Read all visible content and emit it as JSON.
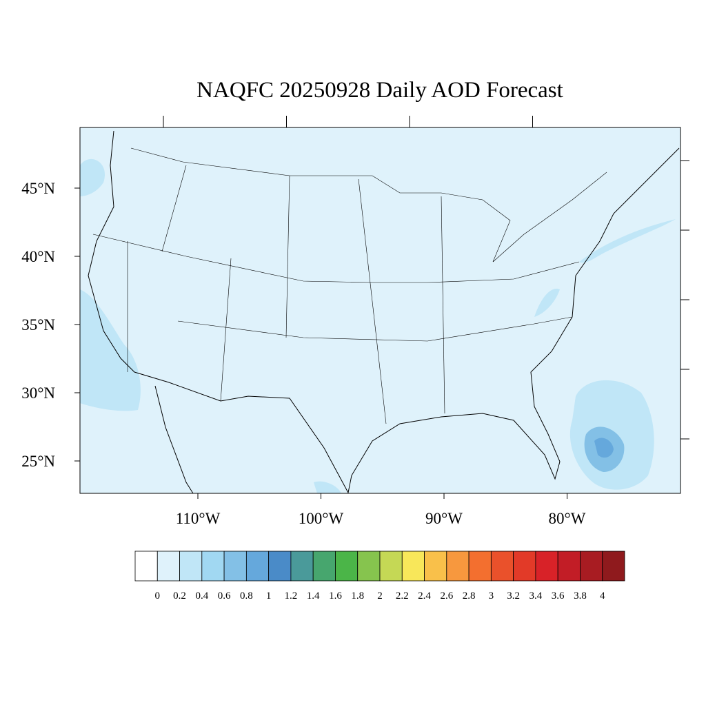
{
  "title": "NAQFC 20250928 Daily AOD Forecast",
  "map": {
    "lat_ticks": [
      {
        "value": 45,
        "label": "45°N"
      },
      {
        "value": 40,
        "label": "40°N"
      },
      {
        "value": 35,
        "label": "35°N"
      },
      {
        "value": 30,
        "label": "30°N"
      },
      {
        "value": 25,
        "label": "25°N"
      }
    ],
    "lon_ticks": [
      {
        "value": -110,
        "label": "110°W"
      },
      {
        "value": -100,
        "label": "100°W"
      },
      {
        "value": -90,
        "label": "90°W"
      },
      {
        "value": -80,
        "label": "80°W"
      }
    ]
  },
  "colorbar": {
    "levels": [
      0,
      0.2,
      0.4,
      0.6,
      0.8,
      1,
      1.2,
      1.4,
      1.6,
      1.8,
      2,
      2.2,
      2.4,
      2.6,
      2.8,
      3,
      3.2,
      3.4,
      3.6,
      3.8,
      4
    ],
    "colors": [
      "#ffffff",
      "#dff2fb",
      "#c0e6f7",
      "#a1d8f2",
      "#83c0e6",
      "#65a8dc",
      "#4a8bc8",
      "#4a9a9a",
      "#47a66e",
      "#4bb548",
      "#86c44e",
      "#c5d855",
      "#f8e75a",
      "#f9c04a",
      "#f7983e",
      "#f36f2f",
      "#ea512b",
      "#e23a28",
      "#d82228",
      "#c21d26",
      "#a81c22",
      "#8f1a1d"
    ]
  }
}
